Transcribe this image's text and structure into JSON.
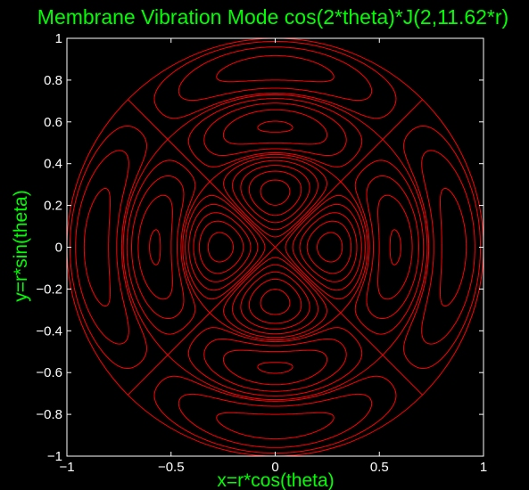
{
  "chart_data": {
    "type": "contour",
    "title": "Membrane Vibration Mode cos(2*theta)*J(2,11.62*r)",
    "xlabel": "x=r*cos(theta)",
    "ylabel": "y=r*sin(theta)",
    "xlim": [
      -1,
      1
    ],
    "ylim": [
      -1,
      1
    ],
    "xticks": [
      -1,
      -0.5,
      0,
      0.5,
      1
    ],
    "xtick_labels": [
      "−1",
      "−0.5",
      "0",
      "0.5",
      "1"
    ],
    "yticks": [
      1,
      0.8,
      0.6,
      0.4,
      0.2,
      0,
      -0.2,
      -0.4,
      -0.6,
      -0.8,
      -1
    ],
    "ytick_labels": [
      "1",
      "0.8",
      "0.6",
      "0.4",
      "0.2",
      "0",
      "−0.2",
      "−0.4",
      "−0.6",
      "−0.8",
      "−1"
    ],
    "grid": false,
    "function": {
      "angular_order": 2,
      "bessel_order": 2,
      "k": 11.62,
      "domain": "unit disk"
    },
    "nodal_circle_radii": [
      0.444,
      0.73,
      1.0
    ],
    "nodal_line_angles_deg": [
      45,
      135
    ],
    "contour_levels": [
      -0.42,
      -0.3,
      -0.2,
      -0.11,
      -0.04,
      0.04,
      0.11,
      0.2,
      0.3,
      0.42
    ],
    "colors": {
      "background": "#000000",
      "contour": "#ff0000",
      "text": "#00ff00",
      "axes": "#ffffff"
    }
  }
}
